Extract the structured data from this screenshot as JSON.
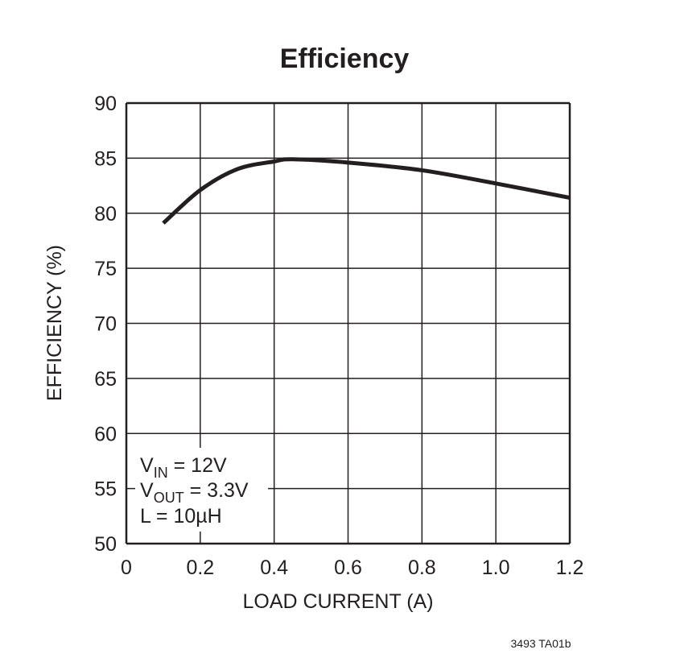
{
  "chart_data": {
    "type": "line",
    "title": "Efficiency",
    "xlabel": "LOAD CURRENT (A)",
    "ylabel": "EFFICIENCY (%)",
    "xlim": [
      0,
      1.2
    ],
    "ylim": [
      50,
      90
    ],
    "xticks": [
      "0",
      "0.2",
      "0.4",
      "0.6",
      "0.8",
      "1.0",
      "1.2"
    ],
    "yticks": [
      "50",
      "55",
      "60",
      "65",
      "70",
      "75",
      "80",
      "85",
      "90"
    ],
    "grid": true,
    "series": [
      {
        "x": [
          0.1,
          0.2,
          0.3,
          0.4,
          0.45,
          0.6,
          0.8,
          1.0,
          1.2
        ],
        "y": [
          79.1,
          82.1,
          84.0,
          84.7,
          84.9,
          84.6,
          83.9,
          82.7,
          81.4
        ]
      }
    ],
    "annotations": {
      "vin": {
        "main": "V",
        "sub": "IN",
        "rest": " = 12V"
      },
      "vout": {
        "main": "V",
        "sub": "OUT",
        "rest": " = 3.3V"
      },
      "l": "L = 10µH"
    },
    "footnote": "3493 TA01b",
    "line_color": "#231f20"
  }
}
